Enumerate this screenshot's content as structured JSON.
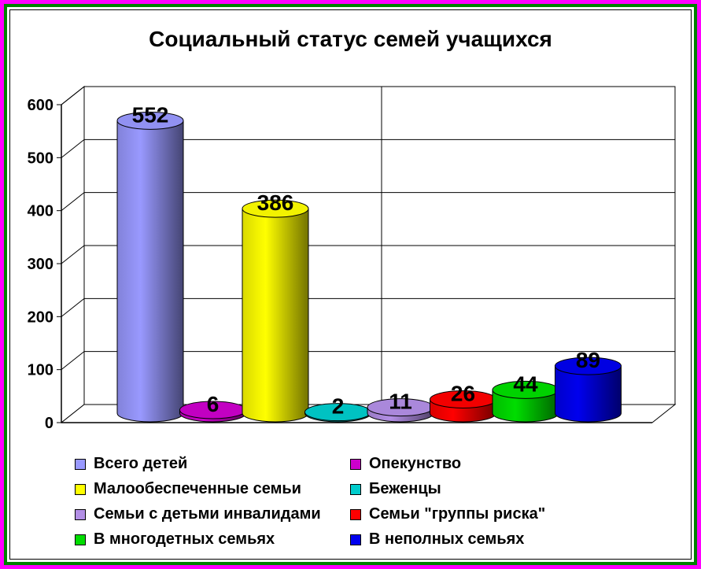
{
  "chart_data": {
    "type": "bar",
    "title": "Социальный статус семей учащихся",
    "categories": [
      "Всего детей",
      "Опекунство",
      "Малообеспеченные семьи",
      "Беженцы",
      "Семьи с детьми инвалидами",
      "Семьи \"группы риска\"",
      "В многодетных семьях",
      "В неполных семьях"
    ],
    "series": [
      {
        "name": "Всего детей",
        "value": 552,
        "color": "#9999ff"
      },
      {
        "name": "Опекунство",
        "value": 6,
        "color": "#cc00cc"
      },
      {
        "name": "Малообеспеченные семьи",
        "value": 386,
        "color": "#ffff00"
      },
      {
        "name": "Беженцы",
        "value": 2,
        "color": "#00cccc"
      },
      {
        "name": "Семьи с детьми инвалидами",
        "value": 11,
        "color": "#b38fe6"
      },
      {
        "name": "Семьи \"группы риска\"",
        "value": 26,
        "color": "#ff0000"
      },
      {
        "name": "В многодетных семьях",
        "value": 44,
        "color": "#00dd00"
      },
      {
        "name": "В неполных семьях",
        "value": 89,
        "color": "#0000ee"
      }
    ],
    "yticks": [
      0,
      100,
      200,
      300,
      400,
      500,
      600
    ],
    "ylim": [
      0,
      600
    ],
    "grid": true,
    "legend_position": "bottom"
  }
}
